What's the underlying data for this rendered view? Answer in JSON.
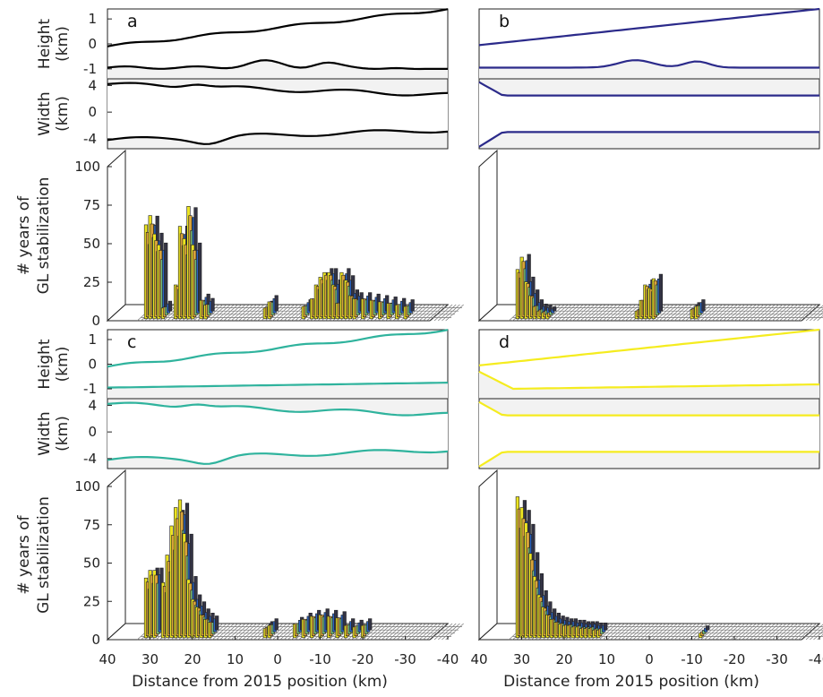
{
  "colors": {
    "a": "#000000",
    "b": "#2b2a8a",
    "c": "#2fb39d",
    "d": "#f5ec1f",
    "shade": "#f2f2f2",
    "bar_yellow": "#ece421",
    "bar_blue": "#2a64c4",
    "bar_dark": "#333344",
    "bar_orange": "#d8a33a",
    "bar_green": "#7ac27a"
  },
  "axes": {
    "height_label_1": "Height",
    "height_label_2": "(km)",
    "width_label_1": "Width",
    "width_label_2": "(km)",
    "bars_label_1": "# years of",
    "bars_label_2": "GL stabilization",
    "height_ticks": [
      "1",
      "0",
      "-1"
    ],
    "width_ticks": [
      "4",
      "0",
      "-4"
    ],
    "bars_ticks": [
      "100",
      "75",
      "50",
      "25",
      "0"
    ],
    "x_ticks": [
      "40",
      "30",
      "20",
      "10",
      "0",
      "-10",
      "-20",
      "-30",
      "-40"
    ],
    "xlabel": "Distance from 2015 position (km)"
  },
  "chart_data": [
    {
      "panel": "a",
      "type": "bar",
      "color": "#000000",
      "x_range": [
        40,
        -40
      ],
      "height_range": [
        -1.4,
        1.4
      ],
      "width_range": [
        -5.5,
        5
      ],
      "bar_range": [
        0,
        100
      ],
      "bars": [
        [
          31,
          61
        ],
        [
          30,
          67
        ],
        [
          29,
          55
        ],
        [
          28,
          48
        ],
        [
          27,
          7
        ],
        [
          24,
          22
        ],
        [
          23,
          60
        ],
        [
          22,
          52
        ],
        [
          21,
          73
        ],
        [
          20,
          48
        ],
        [
          18,
          12
        ],
        [
          17,
          9
        ],
        [
          3,
          7
        ],
        [
          2,
          11
        ],
        [
          -6,
          8
        ],
        [
          -8,
          13
        ],
        [
          -9,
          22
        ],
        [
          -10,
          27
        ],
        [
          -11,
          30
        ],
        [
          -12,
          30
        ],
        [
          -13,
          22
        ],
        [
          -14,
          10
        ],
        [
          -15,
          30
        ],
        [
          -16,
          25
        ],
        [
          -17,
          15
        ],
        [
          -18,
          13
        ],
        [
          -20,
          13
        ],
        [
          -22,
          12
        ],
        [
          -24,
          11
        ],
        [
          -26,
          10
        ],
        [
          -28,
          9
        ],
        [
          -30,
          8
        ]
      ]
    },
    {
      "panel": "b",
      "type": "bar",
      "color": "#2b2a8a",
      "x_range": [
        40,
        -40
      ],
      "height_range": [
        -1.4,
        1.4
      ],
      "width_range": [
        -5.5,
        5
      ],
      "bar_range": [
        0,
        100
      ],
      "bars": [
        [
          31,
          32
        ],
        [
          30,
          40
        ],
        [
          29,
          24
        ],
        [
          28,
          15
        ],
        [
          27,
          8
        ],
        [
          26,
          5
        ],
        [
          25,
          4
        ],
        [
          24,
          3
        ],
        [
          3,
          5
        ],
        [
          2,
          12
        ],
        [
          1,
          22
        ],
        [
          0,
          20
        ],
        [
          -1,
          26
        ],
        [
          -10,
          6
        ],
        [
          -11,
          8
        ]
      ]
    },
    {
      "panel": "c",
      "type": "bar",
      "color": "#2fb39d",
      "x_range": [
        40,
        -40
      ],
      "height_range": [
        -1.4,
        1.4
      ],
      "width_range": [
        -5.5,
        5
      ],
      "bar_range": [
        0,
        100
      ],
      "bars": [
        [
          31,
          39
        ],
        [
          30,
          44
        ],
        [
          29,
          44
        ],
        [
          27,
          36
        ],
        [
          26,
          54
        ],
        [
          25,
          73
        ],
        [
          24,
          85
        ],
        [
          23,
          90
        ],
        [
          22,
          68
        ],
        [
          21,
          38
        ],
        [
          20,
          25
        ],
        [
          19,
          20
        ],
        [
          18,
          15
        ],
        [
          17,
          12
        ],
        [
          16,
          10
        ],
        [
          3,
          6
        ],
        [
          2,
          8
        ],
        [
          -4,
          9
        ],
        [
          -6,
          12
        ],
        [
          -8,
          14
        ],
        [
          -10,
          15
        ],
        [
          -12,
          14
        ],
        [
          -14,
          13
        ],
        [
          -16,
          8
        ],
        [
          -18,
          7
        ],
        [
          -20,
          8
        ]
      ]
    },
    {
      "panel": "d",
      "type": "bar",
      "color": "#f5ec1f",
      "x_range": [
        40,
        -40
      ],
      "height_range": [
        -1.4,
        1.4
      ],
      "width_range": [
        -5.5,
        5
      ],
      "bar_range": [
        0,
        100
      ],
      "bars": [
        [
          31,
          92
        ],
        [
          30,
          85
        ],
        [
          29,
          75
        ],
        [
          28,
          55
        ],
        [
          27,
          40
        ],
        [
          26,
          28
        ],
        [
          25,
          20
        ],
        [
          24,
          15
        ],
        [
          23,
          12
        ],
        [
          22,
          10
        ],
        [
          21,
          9
        ],
        [
          20,
          8
        ],
        [
          19,
          8
        ],
        [
          18,
          7
        ],
        [
          17,
          7
        ],
        [
          16,
          6
        ],
        [
          15,
          6
        ],
        [
          14,
          6
        ],
        [
          13,
          5
        ],
        [
          12,
          5
        ],
        [
          -12,
          3
        ]
      ]
    }
  ]
}
